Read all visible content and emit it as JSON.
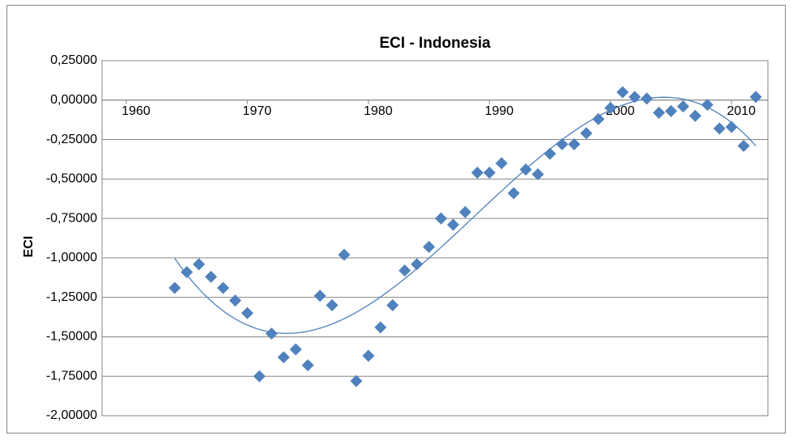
{
  "chart_data": {
    "type": "scatter",
    "title": "ECI - Indonesia",
    "y_label": "ECI",
    "x": [
      1964,
      1965,
      1966,
      1967,
      1968,
      1969,
      1970,
      1971,
      1972,
      1973,
      1974,
      1975,
      1976,
      1977,
      1978,
      1979,
      1980,
      1981,
      1982,
      1983,
      1984,
      1985,
      1986,
      1987,
      1988,
      1989,
      1990,
      1991,
      1992,
      1993,
      1994,
      1995,
      1996,
      1997,
      1998,
      1999,
      2000,
      2001,
      2002,
      2003,
      2004,
      2005,
      2006,
      2007,
      2008,
      2009,
      2010,
      2011,
      2012
    ],
    "values": [
      -1.19,
      -1.09,
      -1.04,
      -1.12,
      -1.19,
      -1.27,
      -1.35,
      -1.75,
      -1.48,
      -1.63,
      -1.58,
      -1.68,
      -1.24,
      -1.3,
      -0.98,
      -1.78,
      -1.62,
      -1.44,
      -1.3,
      -1.08,
      -1.04,
      -0.93,
      -0.75,
      -0.79,
      -0.71,
      -0.46,
      -0.46,
      -0.4,
      -0.59,
      -0.44,
      -0.47,
      -0.34,
      -0.28,
      -0.28,
      -0.21,
      -0.12,
      -0.05,
      0.05,
      0.02,
      0.01,
      -0.08,
      -0.07,
      -0.04,
      -0.1,
      -0.03,
      -0.18,
      -0.17,
      -0.29,
      0.02
    ],
    "color": "#4f81bd",
    "trendline": {
      "type": "polynomial",
      "order": 3,
      "color": "#4f81bd"
    },
    "xlim": [
      1958,
      2013
    ],
    "xticks": [
      1960,
      1970,
      1980,
      1990,
      2000,
      2010
    ],
    "ylim": [
      -2,
      0.25
    ],
    "yticks": [
      {
        "value": 0.25,
        "label": "0,25000"
      },
      {
        "value": 0,
        "label": "0,00000"
      },
      {
        "value": -0.25,
        "label": "-0,25000"
      },
      {
        "value": -0.5,
        "label": "-0,50000"
      },
      {
        "value": -0.75,
        "label": "-0,75000"
      },
      {
        "value": -1,
        "label": "-1,00000"
      },
      {
        "value": -1.25,
        "label": "-1,25000"
      },
      {
        "value": -1.5,
        "label": "-1,50000"
      },
      {
        "value": -1.75,
        "label": "-1,75000"
      },
      {
        "value": -2,
        "label": "-2,00000"
      }
    ],
    "grid": true
  }
}
